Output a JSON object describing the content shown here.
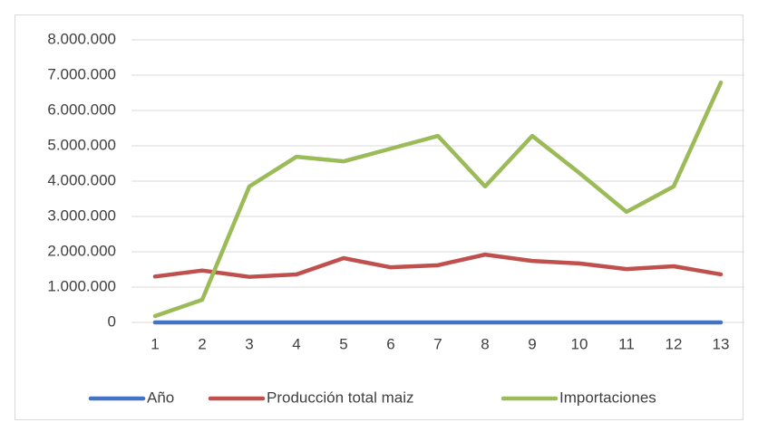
{
  "chart_data": {
    "type": "line",
    "categories": [
      1,
      2,
      3,
      4,
      5,
      6,
      7,
      8,
      9,
      10,
      11,
      12,
      13
    ],
    "series": [
      {
        "name": "Año",
        "color": "#4472c4",
        "values": [
          0,
          0,
          0,
          0,
          0,
          0,
          0,
          0,
          0,
          0,
          0,
          0,
          0
        ]
      },
      {
        "name": "Producción total maiz",
        "color": "#c0504d",
        "values": [
          1300000,
          1470000,
          1290000,
          1360000,
          1820000,
          1560000,
          1620000,
          1920000,
          1740000,
          1670000,
          1510000,
          1590000,
          1360000
        ]
      },
      {
        "name": "Importaciones",
        "color": "#9bbb59",
        "values": [
          180000,
          640000,
          3850000,
          4690000,
          4560000,
          4920000,
          5280000,
          3850000,
          5280000,
          4230000,
          3130000,
          3850000,
          6790000
        ]
      }
    ],
    "ylim": [
      0,
      8000000
    ],
    "yticks": [
      0,
      {
        "value": 1000000,
        "label": "1.000.000"
      },
      {
        "value": 2000000,
        "label": "2.000.000"
      },
      {
        "value": 3000000,
        "label": "3.000.000"
      },
      {
        "value": 4000000,
        "label": "4.000.000"
      },
      {
        "value": 5000000,
        "label": "5.000.000"
      },
      {
        "value": 6000000,
        "label": "6.000.000"
      },
      {
        "value": 7000000,
        "label": "7.000.000"
      },
      {
        "value": 8000000,
        "label": "8.000.000"
      }
    ],
    "grid": true,
    "legend": "bottom"
  }
}
